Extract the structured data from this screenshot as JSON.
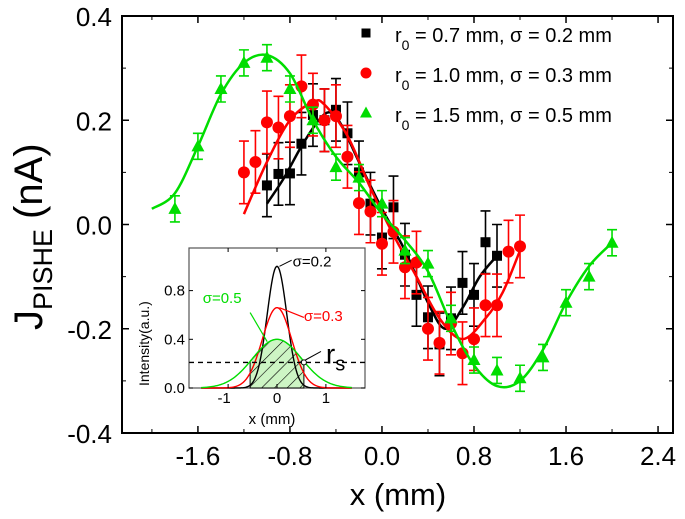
{
  "chart_data": {
    "type": "scatter",
    "xlabel": "x (mm)",
    "ylabel_main": "J",
    "ylabel_sub": "PISHE",
    "ylabel_unit": "(nA)",
    "xlim": [
      -2.26,
      2.53
    ],
    "ylim": [
      -0.4,
      0.4
    ],
    "xticks": [
      "-1.6",
      "-0.8",
      "0.0",
      "0.8",
      "1.6",
      "2.4"
    ],
    "xtick_values": [
      -1.6,
      -0.8,
      0.0,
      0.8,
      1.6,
      2.4
    ],
    "yticks": [
      "0.4",
      "0.2",
      "0.0",
      "-0.2",
      "-0.4"
    ],
    "ytick_values": [
      0.4,
      0.2,
      0.0,
      -0.2,
      -0.4
    ],
    "legend_position": "top-right",
    "series": [
      {
        "name_r": "r",
        "name_sub": "0",
        "name_rest": " = 0.7 mm,  σ = 0.2 mm",
        "color": "#000000",
        "marker": "square",
        "x": [
          -1.0,
          -0.9,
          -0.8,
          -0.7,
          -0.6,
          -0.5,
          -0.4,
          -0.3,
          -0.2,
          -0.1,
          0.0,
          0.1,
          0.2,
          0.3,
          0.4,
          0.5,
          0.6,
          0.7,
          0.8,
          0.9,
          1.0
        ],
        "y": [
          0.075,
          0.097,
          0.098,
          0.155,
          0.21,
          0.2,
          0.22,
          0.175,
          0.1,
          0.04,
          -0.025,
          0.033,
          -0.058,
          -0.135,
          -0.178,
          -0.23,
          -0.18,
          -0.112,
          -0.135,
          -0.034,
          -0.06
        ],
        "err": 0.06,
        "fit_x": [
          -1.0,
          -0.85,
          -0.7,
          -0.55,
          -0.45,
          -0.35,
          -0.2,
          0.0,
          0.2,
          0.4,
          0.55,
          0.7,
          0.85,
          1.0
        ],
        "fit_y": [
          0.04,
          0.09,
          0.15,
          0.2,
          0.215,
          0.19,
          0.12,
          0.03,
          -0.05,
          -0.15,
          -0.2,
          -0.16,
          -0.1,
          -0.06
        ]
      },
      {
        "name_r": "r",
        "name_sub": "0",
        "name_rest": " = 1.0 mm,  σ = 0.3 mm",
        "color": "#ff0000",
        "marker": "circle",
        "x": [
          -1.2,
          -1.1,
          -1.0,
          -0.9,
          -0.8,
          -0.7,
          -0.6,
          -0.5,
          -0.4,
          -0.3,
          -0.2,
          -0.1,
          0.0,
          0.1,
          0.2,
          0.3,
          0.4,
          0.5,
          0.6,
          0.7,
          0.8,
          0.9,
          1.0,
          1.1,
          1.2
        ],
        "y": [
          0.1,
          0.12,
          0.196,
          0.186,
          0.208,
          0.265,
          0.23,
          0.2,
          0.208,
          0.13,
          0.041,
          0.025,
          -0.037,
          -0.014,
          -0.082,
          -0.073,
          -0.2,
          -0.227,
          -0.19,
          -0.247,
          -0.22,
          -0.155,
          -0.155,
          -0.052,
          -0.042
        ],
        "err": 0.06,
        "fit_x": [
          -1.2,
          -1.0,
          -0.8,
          -0.6,
          -0.5,
          -0.3,
          -0.1,
          0.1,
          0.3,
          0.5,
          0.7,
          0.9,
          1.05,
          1.2
        ],
        "fit_y": [
          0.02,
          0.12,
          0.2,
          0.235,
          0.23,
          0.17,
          0.07,
          -0.02,
          -0.1,
          -0.18,
          -0.22,
          -0.18,
          -0.13,
          -0.05
        ]
      },
      {
        "name_r": "r",
        "name_sub": "0",
        "name_rest": " = 1.5 mm,  σ = 0.5 mm",
        "color": "#00dd00",
        "marker": "triangle",
        "x": [
          -1.8,
          -1.6,
          -1.4,
          -1.2,
          -1.0,
          -0.8,
          -0.6,
          -0.4,
          -0.2,
          0.0,
          0.2,
          0.4,
          0.6,
          0.8,
          1.0,
          1.2,
          1.4,
          1.6,
          1.8,
          2.0
        ],
        "y": [
          0.03,
          0.15,
          0.26,
          0.31,
          0.32,
          0.26,
          0.2,
          0.11,
          0.09,
          0.04,
          -0.05,
          -0.075,
          -0.18,
          -0.26,
          -0.28,
          -0.295,
          -0.255,
          -0.15,
          -0.1,
          -0.035
        ],
        "err": 0.025,
        "fit_x": [
          -2.0,
          -1.8,
          -1.6,
          -1.4,
          -1.2,
          -1.0,
          -0.8,
          -0.6,
          -0.4,
          -0.2,
          0.0,
          0.2,
          0.4,
          0.6,
          0.8,
          1.0,
          1.2,
          1.4,
          1.6,
          1.8,
          2.0
        ],
        "fit_y": [
          0.03,
          0.06,
          0.15,
          0.25,
          0.31,
          0.325,
          0.29,
          0.2,
          0.13,
          0.08,
          0.02,
          -0.03,
          -0.09,
          -0.19,
          -0.27,
          -0.31,
          -0.3,
          -0.24,
          -0.15,
          -0.08,
          -0.035
        ]
      }
    ],
    "inset": {
      "type": "line",
      "xlabel": "x (mm)",
      "ylabel": "Intensity(a.u.)",
      "xlim": [
        -1.8,
        1.8
      ],
      "ylim": [
        0,
        1.15
      ],
      "xticks": [
        "-1",
        "0",
        "1"
      ],
      "xtick_values": [
        -1,
        0,
        1
      ],
      "yticks": [
        "0.0",
        "0.4",
        "0.8"
      ],
      "ytick_values": [
        0.0,
        0.4,
        0.8
      ],
      "threshold": 0.21,
      "rs_label": "r",
      "rs_sub": "s",
      "hatch_range": [
        -0.55,
        0.55
      ],
      "curves": [
        {
          "label": "σ=0.2",
          "sigma": 0.2,
          "peak": 1.0,
          "color": "#000000"
        },
        {
          "label": "σ=0.3",
          "sigma": 0.3,
          "peak": 0.66,
          "color": "#ff0000"
        },
        {
          "label": "σ=0.5",
          "sigma": 0.5,
          "peak": 0.4,
          "color": "#00dd00"
        }
      ]
    }
  }
}
